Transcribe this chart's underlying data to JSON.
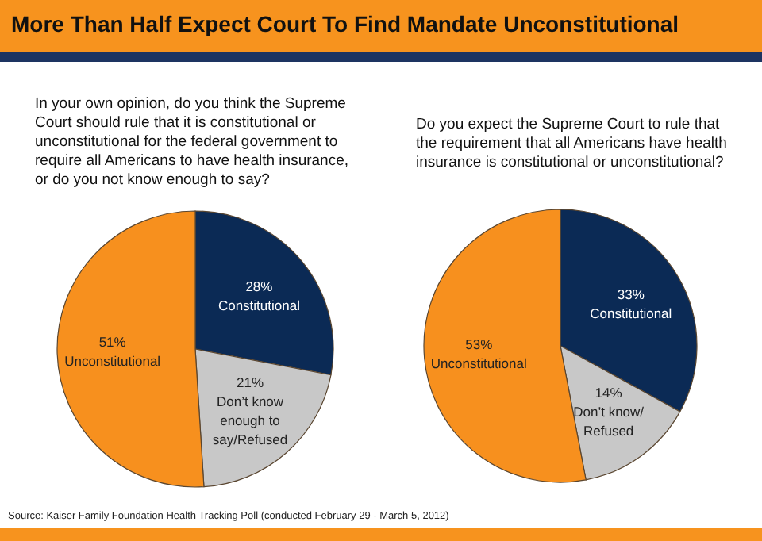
{
  "chart_data": [
    {
      "type": "pie",
      "title": "More Than Half Expect Court To Find Mandate Unconstitutional",
      "subtitle": "In your own opinion, do you think the Supreme Court should rule that it is constitutional or unconstitutional for the federal government to require all Americans to have health insurance, or do you not know enough to say?",
      "categories": [
        "Constitutional",
        "Don’t know enough to say/Refused",
        "Unconstitutional"
      ],
      "values": [
        28,
        21,
        51
      ],
      "value_labels": [
        "28%",
        "21%",
        "51%"
      ],
      "colors": [
        "#0b2a55",
        "#c8c8c8",
        "#f7901e"
      ]
    },
    {
      "type": "pie",
      "subtitle": "Do you expect the Supreme Court to rule that the requirement that all Americans have health insurance is constitutional or unconstitutional?",
      "categories": [
        "Constitutional",
        "Don’t know/ Refused",
        "Unconstitutional"
      ],
      "values": [
        33,
        14,
        53
      ],
      "value_labels": [
        "33%",
        "14%",
        "53%"
      ],
      "colors": [
        "#0b2a55",
        "#c8c8c8",
        "#f7901e"
      ],
      "annotations": [
        "Source: Kaiser Family Foundation Health Tracking Poll (conducted February 29 - March 5, 2012)"
      ]
    }
  ]
}
